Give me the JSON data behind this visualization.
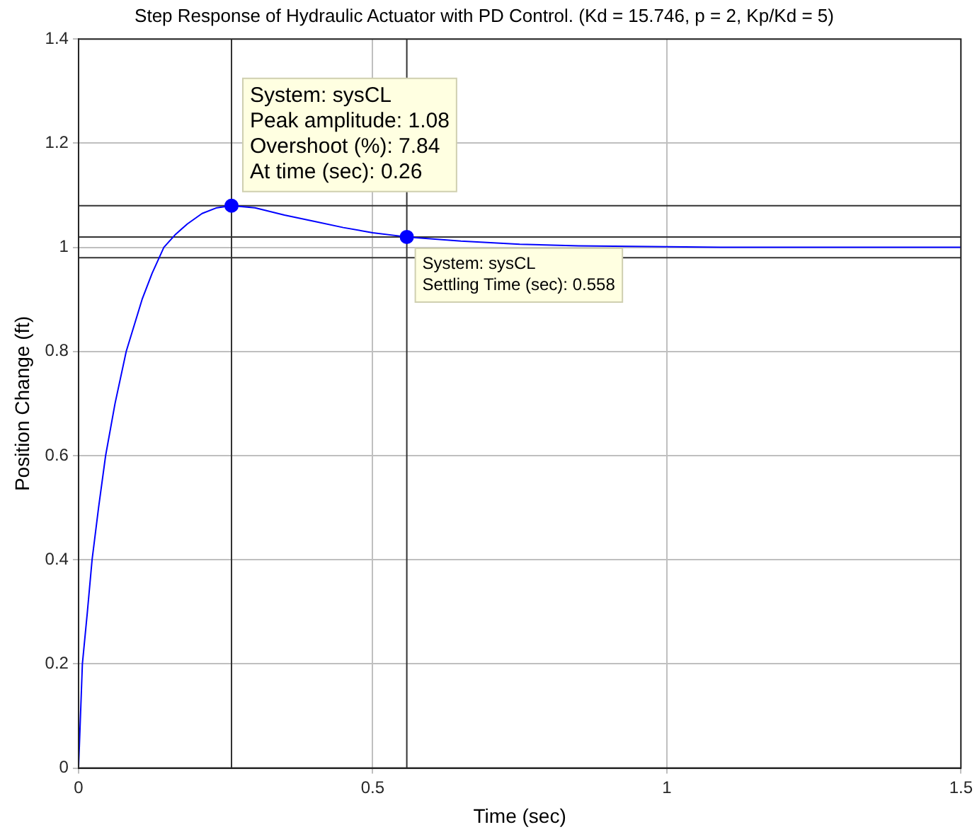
{
  "chart_data": {
    "type": "line",
    "title": "Step Response of Hydraulic Actuator with PD Control. (Kd = 15.746, p = 2, Kp/Kd = 5)",
    "xlabel": "Time (sec)",
    "ylabel": "Position Change (ft)",
    "series": [
      {
        "color": "#0000ff",
        "x": [
          0,
          0.0065,
          0.015,
          0.023,
          0.034,
          0.046,
          0.062,
          0.081,
          0.108,
          0.125,
          0.145,
          0.165,
          0.185,
          0.21,
          0.235,
          0.26,
          0.3,
          0.35,
          0.4,
          0.45,
          0.5,
          0.558,
          0.65,
          0.75,
          0.85,
          1.0,
          1.1,
          1.5
        ],
        "values": [
          0,
          0.2,
          0.3,
          0.4,
          0.5,
          0.6,
          0.7,
          0.8,
          0.9,
          0.95,
          1.0,
          1.025,
          1.045,
          1.065,
          1.076,
          1.08,
          1.076,
          1.062,
          1.05,
          1.038,
          1.028,
          1.02,
          1.012,
          1.006,
          1.003,
          1.001,
          1.0,
          1.0
        ]
      },
      {
        "type": "scatter",
        "color": "#0000ff",
        "marker": "circle",
        "x": [
          0.26,
          0.558
        ],
        "values": [
          1.08,
          1.02
        ]
      }
    ],
    "xlim": [
      0,
      1.5
    ],
    "xticks": [
      0,
      0.5,
      1,
      1.5
    ],
    "ylim": [
      0,
      1.4
    ],
    "yticks": [
      0,
      0.2,
      0.4,
      0.6,
      0.8,
      1,
      1.2,
      1.4
    ],
    "grid": true,
    "legend": false,
    "ref_lines": [
      {
        "axis": "y",
        "value": 1.08,
        "color": "#333333"
      },
      {
        "axis": "y",
        "value": 1.02,
        "color": "#333333"
      },
      {
        "axis": "y",
        "value": 0.98,
        "color": "#333333"
      },
      {
        "axis": "x",
        "value": 0.26,
        "color": "#333333"
      },
      {
        "axis": "x",
        "value": 0.558,
        "color": "#333333"
      }
    ],
    "annotations": [
      {
        "text": "System: sysCL\nPeak amplitude: 1.08\nOvershoot (%): 7.84\nAt time (sec): 0.26",
        "x": 0.26,
        "y": 1.08
      },
      {
        "text": "System: sysCL\nSettling Time (sec): 0.558",
        "x": 0.558,
        "y": 1.02
      }
    ]
  }
}
